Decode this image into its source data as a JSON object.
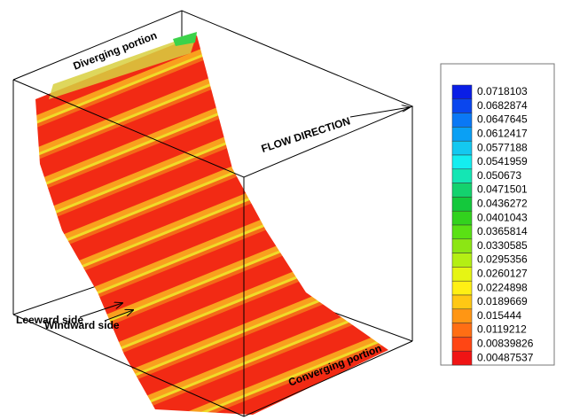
{
  "chart_data": {
    "type": "surface3d",
    "annotations": [
      "Diverging portion",
      "FLOW DIRECTION",
      "Leeward side",
      "Windward side",
      "Converging portion"
    ],
    "colorbar": {
      "levels": [
        0.0718103,
        0.0682874,
        0.0647645,
        0.0612417,
        0.0577188,
        0.0541959,
        0.050673,
        0.0471501,
        0.0436272,
        0.0401043,
        0.0365814,
        0.0330585,
        0.0295356,
        0.0260127,
        0.0224898,
        0.0189669,
        0.015444,
        0.0119212,
        0.00839826,
        0.00487537
      ],
      "colors": [
        "#0a1ee6",
        "#0a46ee",
        "#0a78f5",
        "#0aa0f5",
        "#14c8f0",
        "#14eef0",
        "#14e6b4",
        "#14d26e",
        "#14c83c",
        "#32d21e",
        "#5ae114",
        "#8ce614",
        "#b4ef14",
        "#e6f514",
        "#fff014",
        "#ffc814",
        "#ff9614",
        "#ff6e14",
        "#ff4614",
        "#f01414"
      ]
    }
  }
}
